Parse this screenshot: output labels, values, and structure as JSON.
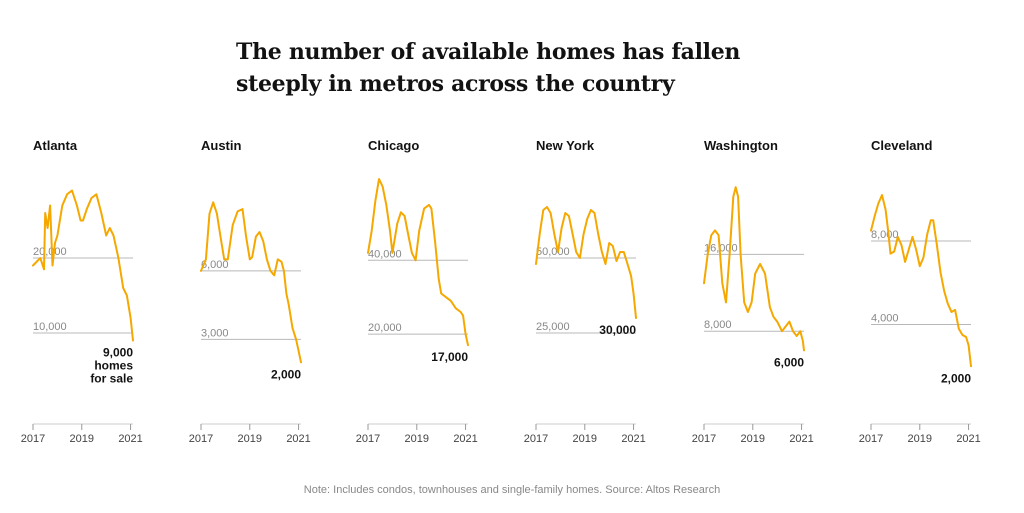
{
  "title": "The number of available homes has fallen steeply in metros across the country",
  "note": "Note: Includes condos, townhouses and single-family homes. Source: Altos Research",
  "colors": {
    "series": "#f5a800",
    "gridline": "#b8b8b8",
    "text": "#121212"
  },
  "chart_data": [
    {
      "type": "line",
      "title": "Atlanta",
      "x_ticks": [
        "2017",
        "2019",
        "2021"
      ],
      "xlim": [
        2017,
        2021.1
      ],
      "ylim": [
        0,
        32000
      ],
      "y_ticks": [
        {
          "value": 10000,
          "label": "10,000"
        },
        {
          "value": 20000,
          "label": "20,000"
        }
      ],
      "end_label": [
        "9,000",
        "homes",
        "for sale"
      ],
      "x": [
        2017.0,
        2017.3,
        2017.45,
        2017.5,
        2017.6,
        2017.7,
        2017.8,
        2017.9,
        2018.0,
        2018.2,
        2018.4,
        2018.6,
        2018.8,
        2018.95,
        2019.05,
        2019.2,
        2019.4,
        2019.6,
        2019.8,
        2020.0,
        2020.15,
        2020.3,
        2020.5,
        2020.7,
        2020.85,
        2021.0,
        2021.1
      ],
      "y": [
        19000,
        20000,
        18500,
        26000,
        24000,
        27000,
        19000,
        22000,
        23000,
        27000,
        28500,
        29000,
        27000,
        25000,
        25000,
        26500,
        28000,
        28500,
        26000,
        23000,
        24000,
        23000,
        20000,
        16000,
        15000,
        12000,
        9000
      ]
    },
    {
      "type": "line",
      "title": "Austin",
      "x_ticks": [
        "2017",
        "2019",
        "2021"
      ],
      "xlim": [
        2017,
        2021.1
      ],
      "ylim": [
        0,
        10500
      ],
      "y_ticks": [
        {
          "value": 3000,
          "label": "3,000"
        },
        {
          "value": 6000,
          "label": "6,000"
        }
      ],
      "end_label": [
        "2,000"
      ],
      "x": [
        2017.0,
        2017.2,
        2017.35,
        2017.5,
        2017.65,
        2017.8,
        2017.95,
        2018.1,
        2018.3,
        2018.5,
        2018.7,
        2018.85,
        2019.0,
        2019.1,
        2019.25,
        2019.4,
        2019.55,
        2019.7,
        2019.85,
        2020.0,
        2020.15,
        2020.3,
        2020.4,
        2020.5,
        2020.6,
        2020.75,
        2020.9,
        2021.0,
        2021.1
      ],
      "y": [
        6000,
        6500,
        8500,
        9000,
        8500,
        7500,
        6500,
        6500,
        8000,
        8600,
        8700,
        7500,
        6500,
        6600,
        7500,
        7700,
        7300,
        6500,
        6000,
        5800,
        6500,
        6400,
        6000,
        5000,
        4500,
        3500,
        3000,
        2500,
        2000
      ]
    },
    {
      "type": "line",
      "title": "Chicago",
      "x_ticks": [
        "2017",
        "2019",
        "2021"
      ],
      "xlim": [
        2017,
        2021.1
      ],
      "ylim": [
        0,
        65000
      ],
      "y_ticks": [
        {
          "value": 20000,
          "label": "20,000"
        },
        {
          "value": 40000,
          "label": "40,000"
        }
      ],
      "end_label": [
        "17,000"
      ],
      "x": [
        2017.0,
        2017.15,
        2017.3,
        2017.45,
        2017.6,
        2017.75,
        2017.9,
        2018.0,
        2018.2,
        2018.35,
        2018.5,
        2018.65,
        2018.8,
        2018.95,
        2019.1,
        2019.3,
        2019.5,
        2019.6,
        2019.75,
        2019.9,
        2020.0,
        2020.2,
        2020.4,
        2020.6,
        2020.8,
        2020.9,
        2021.0,
        2021.1
      ],
      "y": [
        42000,
        48000,
        56000,
        62000,
        60000,
        55000,
        48000,
        42000,
        50000,
        53000,
        52000,
        47000,
        42000,
        40000,
        48000,
        54000,
        55000,
        54000,
        45000,
        35000,
        31000,
        30000,
        29000,
        27000,
        26000,
        25000,
        20000,
        17000
      ]
    },
    {
      "type": "line",
      "title": "New York",
      "x_ticks": [
        "2017",
        "2019",
        "2021"
      ],
      "xlim": [
        2017,
        2021.1
      ],
      "ylim": [
        0,
        80000
      ],
      "y_ticks": [
        {
          "value": 25000,
          "label": "25,000"
        },
        {
          "value": 50000,
          "label": "50,000"
        }
      ],
      "end_label": [
        "30,000"
      ],
      "x": [
        2017.0,
        2017.15,
        2017.3,
        2017.45,
        2017.6,
        2017.75,
        2017.9,
        2018.05,
        2018.2,
        2018.35,
        2018.5,
        2018.65,
        2018.8,
        2018.95,
        2019.1,
        2019.25,
        2019.4,
        2019.55,
        2019.7,
        2019.85,
        2020.0,
        2020.15,
        2020.3,
        2020.45,
        2020.6,
        2020.75,
        2020.9,
        2021.0,
        2021.1
      ],
      "y": [
        48000,
        58000,
        66000,
        67000,
        65000,
        58000,
        52000,
        60000,
        65000,
        64000,
        58000,
        52000,
        50000,
        58000,
        63000,
        66000,
        65000,
        58000,
        52000,
        48000,
        55000,
        54000,
        49000,
        52000,
        52000,
        48000,
        44000,
        38000,
        30000
      ]
    },
    {
      "type": "line",
      "title": "Washington",
      "x_ticks": [
        "2017",
        "2019",
        "2021"
      ],
      "xlim": [
        2017,
        2021.1
      ],
      "ylim": [
        0,
        25000
      ],
      "y_ticks": [
        {
          "value": 8000,
          "label": "8,000"
        },
        {
          "value": 16000,
          "label": "16,000"
        }
      ],
      "end_label": [
        "6,000"
      ],
      "x": [
        2017.0,
        2017.15,
        2017.3,
        2017.45,
        2017.6,
        2017.75,
        2017.9,
        2018.05,
        2018.2,
        2018.3,
        2018.4,
        2018.5,
        2018.65,
        2018.8,
        2018.95,
        2019.1,
        2019.3,
        2019.5,
        2019.7,
        2019.85,
        2020.0,
        2020.2,
        2020.35,
        2020.5,
        2020.65,
        2020.8,
        2020.95,
        2021.05,
        2021.1
      ],
      "y": [
        13000,
        16000,
        18000,
        18500,
        18000,
        13000,
        11000,
        16000,
        22000,
        23000,
        22000,
        16000,
        11000,
        10000,
        11000,
        14000,
        15000,
        14000,
        10500,
        9500,
        9000,
        8000,
        8500,
        9000,
        8000,
        7500,
        8000,
        7000,
        6000
      ]
    },
    {
      "type": "line",
      "title": "Cleveland",
      "x_ticks": [
        "2017",
        "2019",
        "2021"
      ],
      "xlim": [
        2017,
        2021.1
      ],
      "ylim": [
        0,
        11500
      ],
      "y_ticks": [
        {
          "value": 4000,
          "label": "4,000"
        },
        {
          "value": 8000,
          "label": "8,000"
        }
      ],
      "end_label": [
        "2,000"
      ],
      "x": [
        2017.0,
        2017.15,
        2017.3,
        2017.45,
        2017.6,
        2017.7,
        2017.8,
        2017.95,
        2018.1,
        2018.25,
        2018.4,
        2018.55,
        2018.7,
        2018.85,
        2019.0,
        2019.15,
        2019.3,
        2019.45,
        2019.55,
        2019.7,
        2019.85,
        2020.0,
        2020.15,
        2020.3,
        2020.45,
        2020.6,
        2020.75,
        2020.9,
        2021.0,
        2021.1
      ],
      "y": [
        8500,
        9200,
        9800,
        10200,
        9500,
        8500,
        7400,
        7500,
        8200,
        7800,
        7000,
        7600,
        8200,
        7600,
        6800,
        7200,
        8300,
        9000,
        9000,
        7800,
        6500,
        5600,
        5000,
        4600,
        4700,
        3800,
        3500,
        3400,
        3000,
        2000
      ]
    }
  ]
}
